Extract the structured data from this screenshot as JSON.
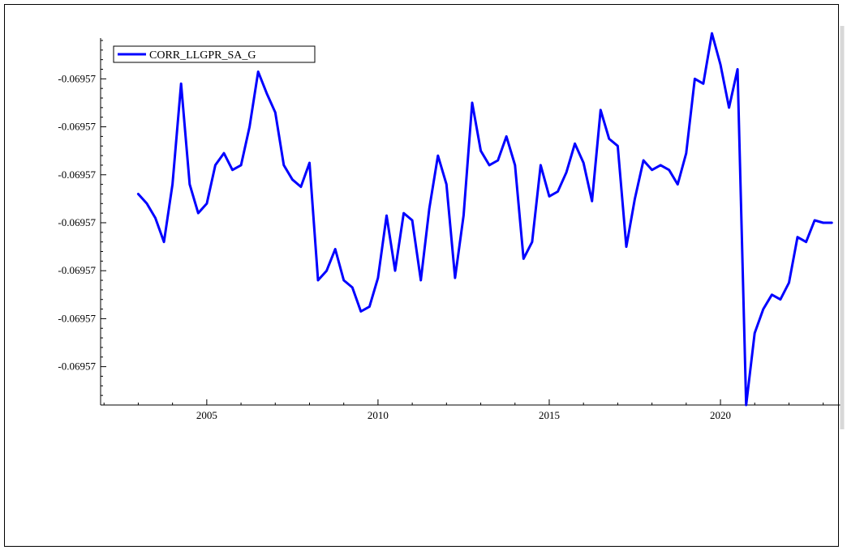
{
  "chart_data": {
    "type": "line",
    "title": "",
    "xlabel": "",
    "ylabel": "",
    "legend": {
      "placement": "top-left"
    },
    "grid": false,
    "x_ticks": [
      2005,
      2010,
      2015,
      2020
    ],
    "y_tick_labels": [
      "-0.06957",
      "-0.06957",
      "-0.06957",
      "-0.06957",
      "-0.06957",
      "-0.06957",
      "-0.06957"
    ],
    "y_tick_levels": [
      0.8,
      1.8,
      2.8,
      3.8,
      4.8,
      5.8,
      6.8
    ],
    "xlim": [
      2001.9,
      2023.6
    ],
    "ylim": [
      0,
      7.65
    ],
    "series": [
      {
        "name": "CORR_LLGPR_SA_G",
        "color": "#0000ff",
        "x": [
          2003.0,
          2003.25,
          2003.5,
          2003.75,
          2004.0,
          2004.25,
          2004.5,
          2004.75,
          2005.0,
          2005.25,
          2005.5,
          2005.75,
          2006.0,
          2006.25,
          2006.5,
          2006.75,
          2007.0,
          2007.25,
          2007.5,
          2007.75,
          2008.0,
          2008.25,
          2008.5,
          2008.75,
          2009.0,
          2009.25,
          2009.5,
          2009.75,
          2010.0,
          2010.25,
          2010.5,
          2010.75,
          2011.0,
          2011.25,
          2011.5,
          2011.75,
          2012.0,
          2012.25,
          2012.5,
          2012.75,
          2013.0,
          2013.25,
          2013.5,
          2013.75,
          2014.0,
          2014.25,
          2014.5,
          2014.75,
          2015.0,
          2015.25,
          2015.5,
          2015.75,
          2016.0,
          2016.25,
          2016.5,
          2016.75,
          2017.0,
          2017.25,
          2017.5,
          2017.75,
          2018.0,
          2018.25,
          2018.5,
          2018.75,
          2019.0,
          2019.25,
          2019.5,
          2019.75,
          2020.0,
          2020.25,
          2020.5,
          2020.75,
          2021.0,
          2021.25,
          2021.5,
          2021.75,
          2022.0,
          2022.25,
          2022.5,
          2022.75,
          2023.0,
          2023.25
        ],
        "values": [
          4.4,
          4.2,
          3.9,
          3.4,
          4.6,
          6.7,
          4.6,
          4.0,
          4.2,
          5.0,
          5.25,
          4.9,
          5.0,
          5.8,
          6.95,
          6.5,
          6.1,
          5.0,
          4.7,
          4.55,
          5.05,
          2.6,
          2.8,
          3.25,
          2.6,
          2.45,
          1.95,
          2.05,
          2.65,
          3.95,
          2.8,
          4.0,
          3.85,
          2.6,
          4.1,
          5.2,
          4.6,
          2.65,
          3.95,
          6.3,
          5.3,
          5.0,
          5.1,
          5.6,
          5.0,
          3.05,
          3.4,
          5.0,
          4.35,
          4.45,
          4.85,
          5.45,
          5.05,
          4.25,
          6.15,
          5.55,
          5.4,
          3.3,
          4.3,
          5.1,
          4.9,
          5.0,
          4.9,
          4.6,
          5.25,
          6.8,
          6.7,
          7.75,
          7.1,
          6.2,
          7.0,
          0.0,
          1.5,
          2.0,
          2.3,
          2.2,
          2.55,
          3.5,
          3.4,
          3.85,
          3.8,
          3.8
        ]
      }
    ]
  }
}
